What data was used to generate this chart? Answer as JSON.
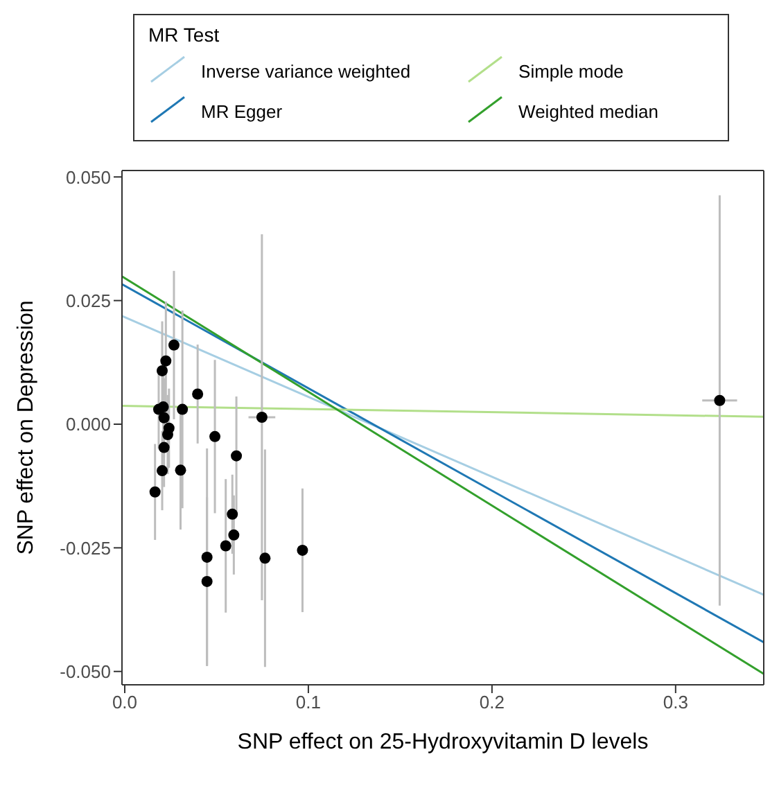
{
  "chart_data": {
    "type": "scatter",
    "xlabel": "SNP effect on  25-Hydroxyvitamin D levels",
    "ylabel": "SNP effect on Depression",
    "legend_title": "MR Test",
    "legend": "top",
    "grid": false,
    "xlim": [
      -0.0015,
      0.348
    ],
    "ylim": [
      -0.0527,
      0.0513
    ],
    "xticks": [
      {
        "value": 0,
        "label": "0.0"
      },
      {
        "value": 0.1,
        "label": "0.1"
      },
      {
        "value": 0.2,
        "label": "0.2"
      },
      {
        "value": 0.3,
        "label": "0.3"
      }
    ],
    "yticks": [
      {
        "value": -0.05,
        "label": "-0.050"
      },
      {
        "value": -0.025,
        "label": "-0.025"
      },
      {
        "value": 0,
        "label": "0.000"
      },
      {
        "value": 0.025,
        "label": "0.025"
      },
      {
        "value": 0.05,
        "label": "0.050"
      }
    ],
    "series": [
      {
        "marker": "circle",
        "color": "#000000",
        "x": [
          0.0268,
          0.0224,
          0.0204,
          0.0397,
          0.0185,
          0.021,
          0.0314,
          0.0214,
          0.0747,
          0.0241,
          0.0234,
          0.0491,
          0.0214,
          0.0608,
          0.0204,
          0.0304,
          0.0165,
          0.0586,
          0.0594,
          0.055,
          0.0448,
          0.0764,
          0.0968,
          0.0448,
          0.324
        ],
        "values": [
          0.016,
          0.0128,
          0.0108,
          0.0061,
          0.003,
          0.0035,
          0.003,
          0.0013,
          0.0014,
          -0.0008,
          -0.0021,
          -0.0025,
          -0.0047,
          -0.0064,
          -0.0094,
          -0.0093,
          -0.0137,
          -0.0182,
          -0.0224,
          -0.0246,
          -0.0269,
          -0.0271,
          -0.0255,
          -0.0318,
          0.0048
        ],
        "errors": [
          0.015,
          0.012,
          0.01,
          0.01,
          0.008,
          0.008,
          0.02,
          0.008,
          0.037,
          0.008,
          0.008,
          0.0155,
          0.008,
          0.012,
          0.008,
          0.012,
          0.0097,
          0.008,
          0.008,
          0.0135,
          0.022,
          0.022,
          0.0125,
          0.017,
          0.0415
        ],
        "xerrors": [
          null,
          null,
          null,
          null,
          null,
          null,
          null,
          null,
          0.0073,
          null,
          null,
          null,
          null,
          null,
          null,
          null,
          null,
          null,
          null,
          null,
          null,
          null,
          null,
          null,
          0.0095
        ]
      },
      {
        "type": "line",
        "name": "Inverse variance weighted",
        "color": "#a6cee3",
        "x": [
          -0.0015,
          0.348
        ],
        "values": [
          0.0219,
          -0.0345
        ]
      },
      {
        "type": "line",
        "name": "MR Egger",
        "color": "#1f78b4",
        "x": [
          -0.0015,
          0.348
        ],
        "values": [
          0.0283,
          -0.0441
        ]
      },
      {
        "type": "line",
        "name": "Simple mode",
        "color": "#b2df8a",
        "x": [
          -0.0015,
          0.348
        ],
        "values": [
          0.0037,
          0.0015
        ]
      },
      {
        "type": "line",
        "name": "Weighted median",
        "color": "#33a02c",
        "x": [
          -0.0015,
          0.348
        ],
        "values": [
          0.0299,
          -0.0505
        ]
      }
    ]
  }
}
